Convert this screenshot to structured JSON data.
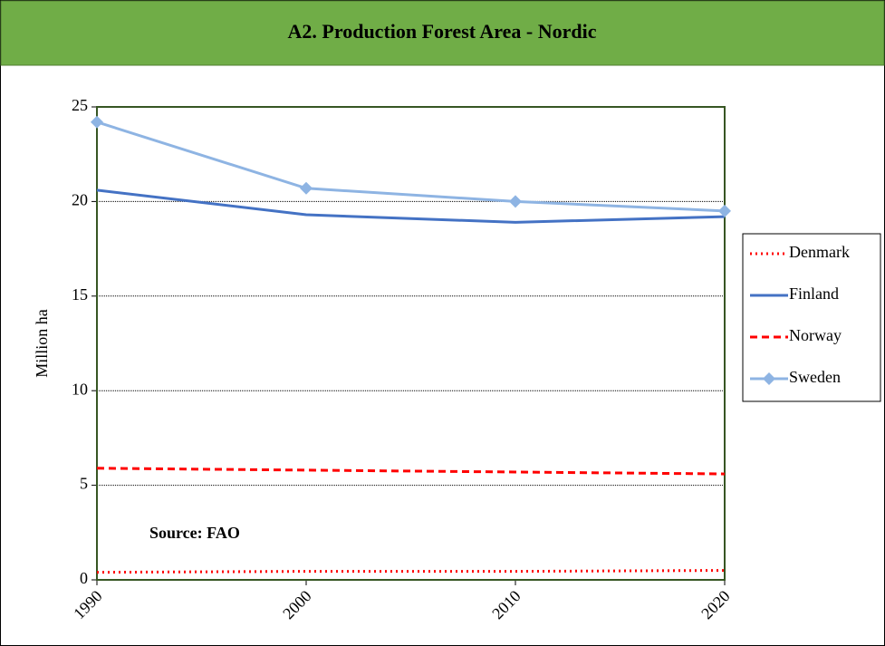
{
  "chart_data": {
    "type": "line",
    "title": "A2. Production Forest Area - Nordic",
    "y_label": "Million ha",
    "annotation": "Source: FAO",
    "x": [
      1990,
      2000,
      2010,
      2020
    ],
    "xlim": [
      1990,
      2020
    ],
    "xticks": [
      1990,
      2000,
      2010,
      2020
    ],
    "ylim": [
      0,
      25
    ],
    "yticks": [
      0,
      5,
      10,
      15,
      20,
      25
    ],
    "grid": true,
    "legend": "right",
    "series": [
      {
        "name": "Denmark",
        "color": "#ff0000",
        "style": "dotted",
        "values": [
          0.4,
          0.45,
          0.45,
          0.5
        ]
      },
      {
        "name": "Finland",
        "color": "#4472c4",
        "style": "solid",
        "values": [
          20.6,
          19.3,
          18.9,
          19.2
        ]
      },
      {
        "name": "Norway",
        "color": "#ff0000",
        "style": "dashed",
        "values": [
          5.9,
          5.8,
          5.7,
          5.6
        ]
      },
      {
        "name": "Sweden",
        "color": "#8eb4e3",
        "style": "solid",
        "marker": "diamond",
        "values": [
          24.2,
          20.7,
          20.0,
          19.5
        ]
      }
    ]
  }
}
